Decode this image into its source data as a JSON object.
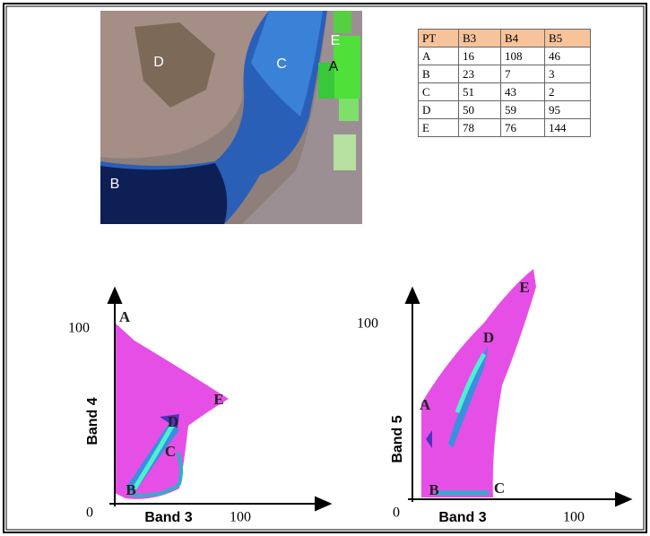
{
  "image": {
    "labels": [
      "D",
      "C",
      "E",
      "A",
      "B"
    ]
  },
  "table": {
    "header": [
      "PT",
      "B3",
      "B4",
      "B5"
    ],
    "rows": [
      [
        "A",
        16,
        108,
        46
      ],
      [
        "B",
        23,
        7,
        3
      ],
      [
        "C",
        51,
        43,
        2
      ],
      [
        "D",
        50,
        59,
        95
      ],
      [
        "E",
        78,
        76,
        144
      ]
    ]
  },
  "plots": [
    {
      "x_label": "Band 3",
      "y_label": "Band 4",
      "origin": "0",
      "x_tick": "100",
      "y_tick": "100",
      "points": [
        "A",
        "E",
        "D",
        "C",
        "B"
      ]
    },
    {
      "x_label": "Band 3",
      "y_label": "Band 5",
      "origin": "0",
      "x_tick": "100",
      "y_tick": "100",
      "points": [
        "E",
        "D",
        "A",
        "B",
        "C"
      ]
    }
  ]
}
